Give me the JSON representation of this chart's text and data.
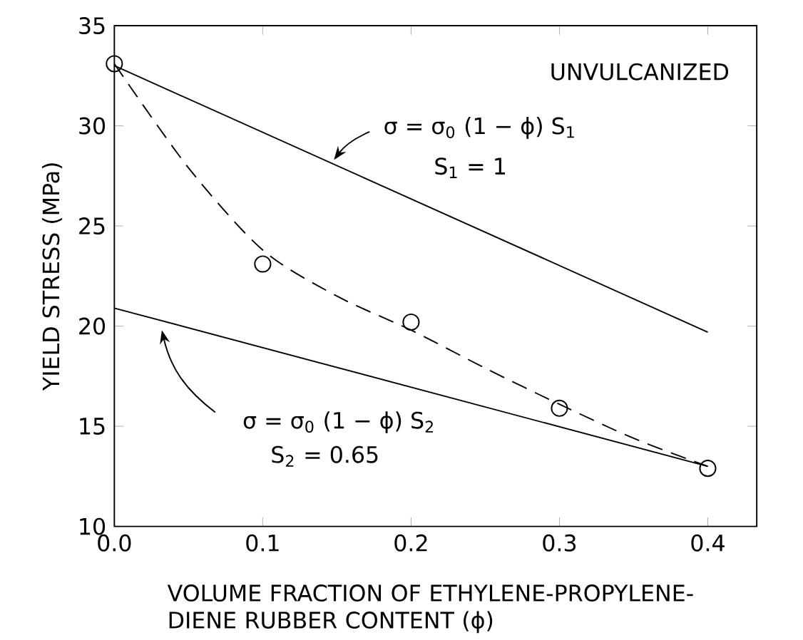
{
  "chart_data": {
    "type": "scatter",
    "xlabel": "VOLUME FRACTION OF ETHYLENE-PROPYLENE-DIENE RUBBER CONTENT (ϕ)",
    "ylabel": "YIELD STRESS (MPa)",
    "xlim": [
      0,
      0.433
    ],
    "ylim": [
      10,
      35
    ],
    "xticks": [
      {
        "value": 0,
        "label": "0.0"
      },
      0.1,
      0.2,
      0.3,
      0.4
    ],
    "yticks": [
      10,
      15,
      20,
      25,
      30,
      35
    ],
    "series": [
      {
        "marker": "circle",
        "color": "#000000",
        "x": [
          0,
          0.1,
          0.2,
          0.3,
          0.4
        ],
        "values": [
          33.1,
          23.1,
          20.2,
          15.9,
          12.9
        ]
      },
      {
        "type": "line",
        "line_style": "solid",
        "color": "#000000",
        "x": [
          0,
          0.4
        ],
        "values": [
          33.0,
          19.7
        ]
      },
      {
        "type": "line",
        "line_style": "solid",
        "color": "#000000",
        "x": [
          0,
          0.4
        ],
        "values": [
          20.9,
          13.0
        ]
      },
      {
        "type": "line",
        "line_style": "dashed",
        "color": "#000000",
        "x": [
          0,
          0.05,
          0.1,
          0.15,
          0.2,
          0.25,
          0.3,
          0.35,
          0.4
        ],
        "values": [
          33.1,
          27.9,
          23.8,
          21.5,
          19.8,
          17.9,
          16.1,
          14.4,
          13.0
        ]
      }
    ],
    "annotations": [
      "UNVULCANIZED",
      {
        "text": "σ = σ$_{0}$ (1 − ϕ) S$_{1}$",
        "x": 0.148,
        "y": 28.3
      },
      "S$_{1}$ = 1",
      "σ = σ$_{0}$ (1 − ϕ) S$_{2}$",
      "S$_{2}$ = 0.65"
    ]
  }
}
